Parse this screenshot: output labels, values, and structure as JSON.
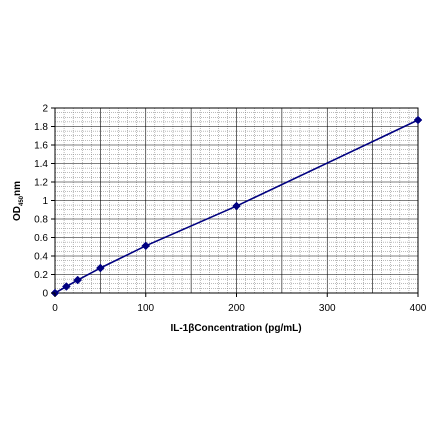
{
  "chart_data": {
    "type": "line",
    "title": "",
    "xlabel": "IL-1βConcentration (pg/mL)",
    "ylabel": {
      "main": "OD",
      "subscript": "450",
      "suffix": "nm"
    },
    "xlim": [
      0,
      400
    ],
    "ylim": [
      0,
      2
    ],
    "xticks": [
      0,
      100,
      200,
      300,
      400
    ],
    "yticks": [
      0,
      0.2,
      0.4,
      0.6,
      0.8,
      1,
      1.2,
      1.4,
      1.6,
      1.8,
      2
    ],
    "xtick_labels": [
      "0",
      "100",
      "200",
      "300",
      "400"
    ],
    "ytick_labels": [
      "0",
      "0.2",
      "0.4",
      "0.6",
      "0.8",
      "1",
      "1.2",
      "1.4",
      "1.6",
      "1.8",
      "2"
    ],
    "grid": true,
    "legend": "none",
    "series": [
      {
        "color": "#000080",
        "marker": "diamond",
        "points": [
          {
            "x": 0,
            "y": 0.0
          },
          {
            "x": 12.5,
            "y": 0.07
          },
          {
            "x": 25,
            "y": 0.14
          },
          {
            "x": 50,
            "y": 0.27
          },
          {
            "x": 100,
            "y": 0.51
          },
          {
            "x": 200,
            "y": 0.94
          },
          {
            "x": 400,
            "y": 1.87
          }
        ]
      }
    ]
  },
  "colors": {
    "line": "#000080",
    "marker": "#000080",
    "grid_major": "#000000",
    "grid_minor": "#777777",
    "plot_background": "#ffffff"
  }
}
